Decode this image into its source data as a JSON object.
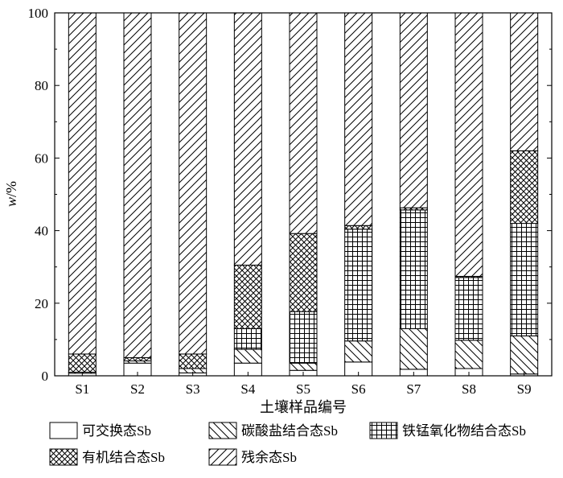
{
  "chart_data": {
    "type": "bar",
    "stacked": true,
    "categories": [
      "S1",
      "S2",
      "S3",
      "S4",
      "S5",
      "S6",
      "S7",
      "S8",
      "S9"
    ],
    "series": [
      {
        "name": "可交换态Sb",
        "pattern": "none",
        "values": [
          0.7,
          3.5,
          0.8,
          3.5,
          1.5,
          3.8,
          1.8,
          2.0,
          0.5
        ]
      },
      {
        "name": "碳酸盐结合态Sb",
        "pattern": "backslash",
        "values": [
          0.3,
          0.6,
          1.2,
          3.8,
          2.0,
          5.8,
          11.2,
          7.8,
          10.5
        ]
      },
      {
        "name": "铁锰氧化物结合态Sb",
        "pattern": "grid",
        "values": [
          0.0,
          0.0,
          0.0,
          5.7,
          14.2,
          30.8,
          32.7,
          17.3,
          31.0
        ]
      },
      {
        "name": "有机结合态Sb",
        "pattern": "crosshatch",
        "values": [
          5.0,
          0.9,
          4.0,
          17.5,
          21.5,
          1.0,
          0.6,
          0.3,
          20.0
        ]
      },
      {
        "name": "残余态Sb",
        "pattern": "slash",
        "values": [
          94.0,
          95.0,
          94.0,
          69.5,
          60.8,
          58.6,
          53.7,
          72.6,
          38.0
        ]
      }
    ],
    "title": "",
    "xlabel": "土壤样品编号",
    "ylabel_italic": "w",
    "ylabel_rest": "/%",
    "ylim": [
      0,
      100
    ],
    "yticks": [
      "0",
      "20",
      "40",
      "60",
      "80",
      "100"
    ],
    "grid": false,
    "legend_position": "bottom"
  }
}
